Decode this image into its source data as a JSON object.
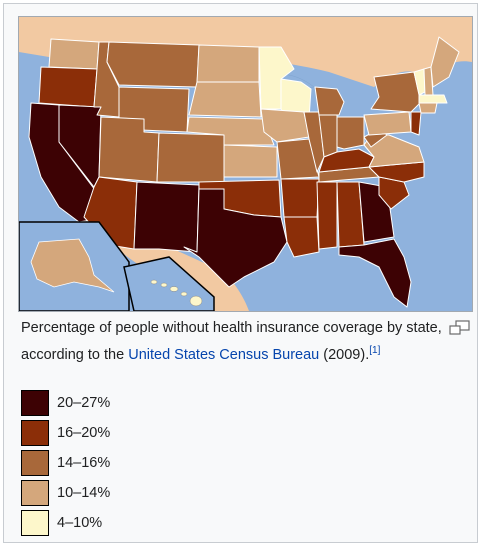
{
  "caption": {
    "text_before": "Percentage of people without health insurance coverage by state, according to the ",
    "link_text": "United States Census Bureau",
    "text_after": " (2009).",
    "citation": "[1]"
  },
  "legend": [
    {
      "label": "20–27%",
      "color": "#3d0204"
    },
    {
      "label": "16–20%",
      "color": "#8b2e08"
    },
    {
      "label": "14–16%",
      "color": "#a8683a"
    },
    {
      "label": "10–14%",
      "color": "#d4a77c"
    },
    {
      "label": "4–10%",
      "color": "#fdf7cb"
    }
  ],
  "map": {
    "water_color": "#8fb2dd",
    "neighbor_land_color": "#f2c9a2",
    "border_color": "#ffffff"
  }
}
